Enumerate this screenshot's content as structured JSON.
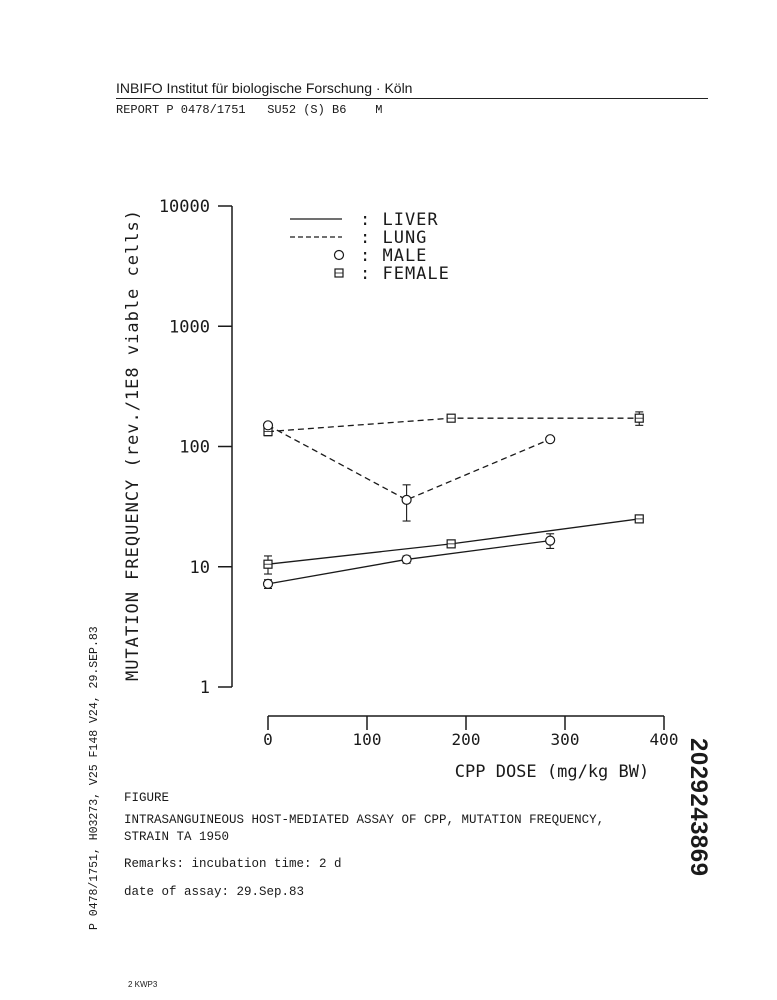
{
  "header": {
    "institute": "INBIFO Institut für biologische Forschung · Köln",
    "report": "REPORT P 0478/1751   SU52 (S) B6    M"
  },
  "figure": {
    "label": "FIGURE",
    "caption_line1": "INTRASANGUINEOUS HOST-MEDIATED ASSAY OF CPP, MUTATION FREQUENCY,",
    "caption_line2": "STRAIN TA 1950",
    "remarks": "Remarks: incubation time: 2 d",
    "date": "date of assay: 29.Sep.83"
  },
  "side_text": "P 0478/1751, H03273, V25 F148 V24, 29.SEP.83",
  "doc_number": "2029243869",
  "footer": "2 KWP3",
  "chart_data": {
    "type": "line",
    "xlabel": "CPP DOSE (mg/kg BW)",
    "ylabel": "MUTATION FREQUENCY (rev./1E8 viable cells)",
    "xlim": [
      0,
      400
    ],
    "ylim": [
      1,
      10000
    ],
    "yscale": "log",
    "x_ticks": [
      "0",
      "100",
      "200",
      "300",
      "400"
    ],
    "y_ticks": [
      "1",
      "10",
      "100",
      "1000",
      "10000"
    ],
    "legend": [
      {
        "symbol": "solid-line",
        "label": ": LIVER"
      },
      {
        "symbol": "dashed-line",
        "label": ": LUNG"
      },
      {
        "symbol": "circle",
        "label": ": MALE"
      },
      {
        "symbol": "square",
        "label": ": FEMALE"
      }
    ],
    "legend_position": "top",
    "series": [
      {
        "organ": "liver",
        "sex": "female",
        "x": [
          0,
          185,
          375
        ],
        "y": [
          10.5,
          15.5,
          25
        ],
        "err": [
          1.8,
          1,
          1
        ]
      },
      {
        "organ": "liver",
        "sex": "male",
        "x": [
          0,
          140,
          285
        ],
        "y": [
          7.2,
          11.5,
          16.5
        ],
        "err": [
          0.6,
          0.8,
          2.3
        ]
      },
      {
        "organ": "lung",
        "sex": "female",
        "x": [
          0,
          185,
          375
        ],
        "y": [
          133,
          172,
          172
        ],
        "err": [
          10,
          8,
          22
        ]
      },
      {
        "organ": "lung",
        "sex": "male",
        "x": [
          0,
          140,
          285
        ],
        "y": [
          150,
          36,
          115
        ],
        "err": [
          8,
          12,
          6
        ]
      }
    ]
  }
}
